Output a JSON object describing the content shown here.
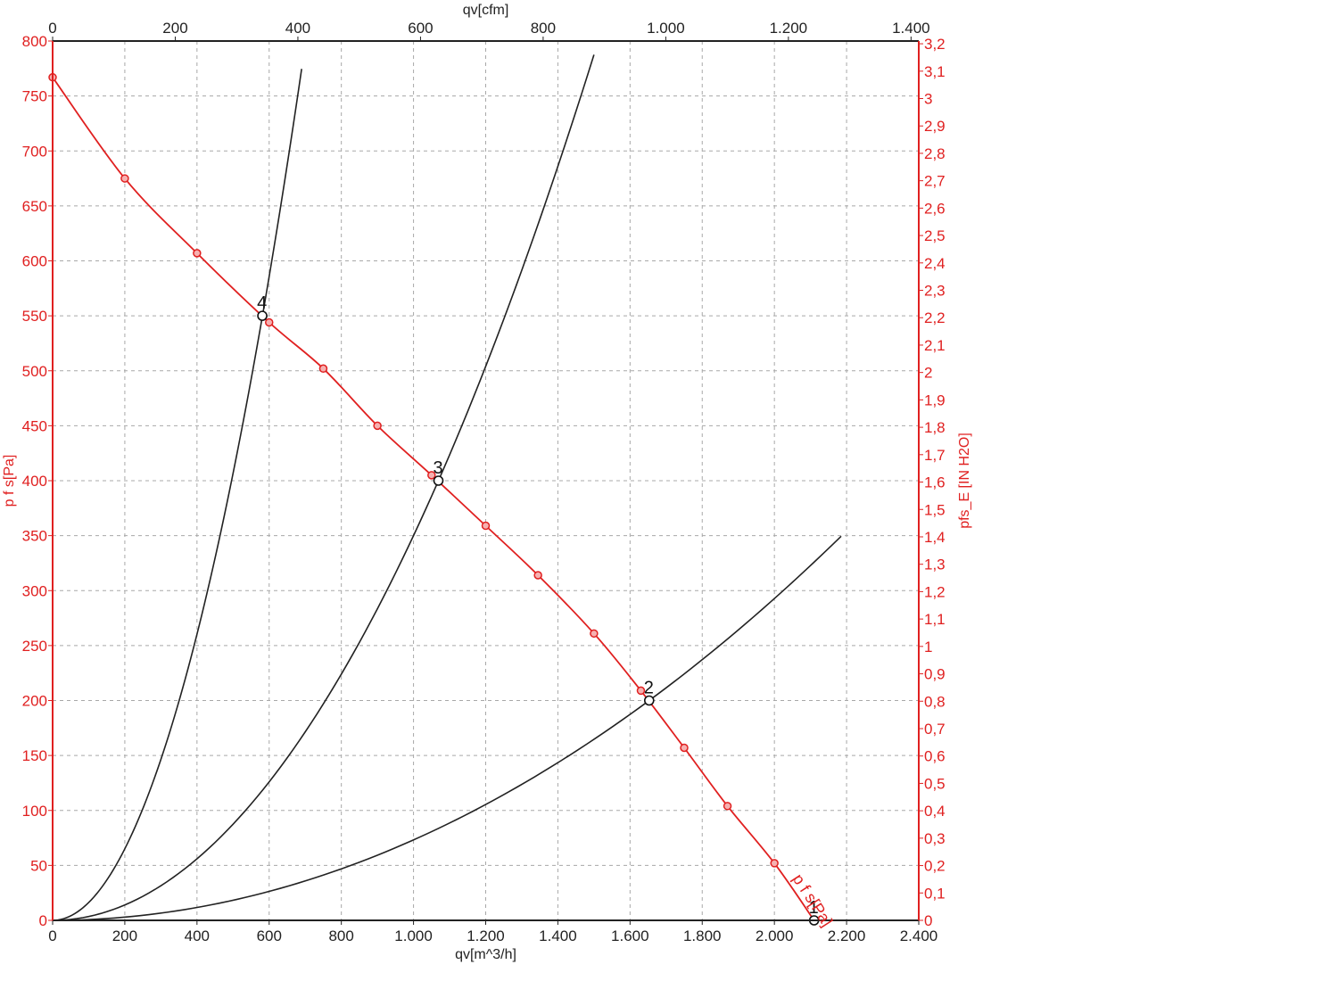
{
  "chart_data": {
    "type": "line",
    "title": "",
    "grid": true,
    "x_bottom": {
      "label": "qv[m^3/h]",
      "range": [
        0,
        2400
      ],
      "ticks": [
        0,
        200,
        400,
        600,
        800,
        1000,
        1200,
        1400,
        1600,
        1800,
        2000,
        2200,
        2400
      ],
      "tick_labels": [
        "0",
        "200",
        "400",
        "600",
        "800",
        "1.000",
        "1.200",
        "1.400",
        "1.600",
        "1.800",
        "2.000",
        "2.200",
        "2.400"
      ]
    },
    "x_top": {
      "label": "qv[cfm]",
      "range": [
        0,
        1412.6
      ],
      "ticks": [
        0,
        200,
        400,
        600,
        800,
        1000,
        1200,
        1400
      ],
      "tick_labels": [
        "0",
        "200",
        "400",
        "600",
        "800",
        "1.000",
        "1.200",
        "1.400"
      ]
    },
    "y_left": {
      "label": "p f s[Pa]",
      "range": [
        0,
        800
      ],
      "ticks": [
        0,
        50,
        100,
        150,
        200,
        250,
        300,
        350,
        400,
        450,
        500,
        550,
        600,
        650,
        700,
        750,
        800
      ],
      "tick_labels": [
        "0",
        "50",
        "100",
        "150",
        "200",
        "250",
        "300",
        "350",
        "400",
        "450",
        "500",
        "550",
        "600",
        "650",
        "700",
        "750",
        "800"
      ]
    },
    "y_right": {
      "label": "pfs_E [IN H2O]",
      "range": [
        0,
        3.21
      ],
      "ticks": [
        0,
        0.1,
        0.2,
        0.3,
        0.4,
        0.5,
        0.6,
        0.7,
        0.8,
        0.9,
        1,
        1.1,
        1.2,
        1.3,
        1.4,
        1.5,
        1.6,
        1.7,
        1.8,
        1.9,
        2,
        2.1,
        2.2,
        2.3,
        2.4,
        2.5,
        2.6,
        2.7,
        2.8,
        2.9,
        3,
        3.1,
        3.2
      ],
      "tick_labels": [
        "0",
        "0,1",
        "0,2",
        "0,3",
        "0,4",
        "0,5",
        "0,6",
        "0,7",
        "0,8",
        "0,9",
        "1",
        "1,1",
        "1,2",
        "1,3",
        "1,4",
        "1,5",
        "1,6",
        "1,7",
        "1,8",
        "1,9",
        "2",
        "2,1",
        "2,2",
        "2,3",
        "2,4",
        "2,5",
        "2,6",
        "2,7",
        "2,8",
        "2,9",
        "3",
        "3,1",
        "3,2"
      ]
    },
    "fan_curve": {
      "name": "p f s[Pa]",
      "color": "#e02020",
      "x": [
        0,
        200,
        400,
        600,
        750,
        900,
        1050,
        1200,
        1345,
        1500,
        1630,
        1750,
        1870,
        2000,
        2110
      ],
      "y": [
        767,
        675,
        607,
        544,
        502,
        450,
        405,
        359,
        314,
        261,
        209,
        157,
        104,
        52,
        0
      ],
      "markers_x": [
        0,
        200,
        400,
        600,
        750,
        900,
        1050,
        1200,
        1345,
        1500,
        1630,
        1750,
        1870,
        2000
      ],
      "markers_y": [
        767,
        675,
        607,
        544,
        502,
        450,
        405,
        359,
        314,
        261,
        209,
        157,
        104,
        52
      ]
    },
    "system_curves": [
      {
        "color": "#222222",
        "k": 0.001627,
        "x_max": 690
      },
      {
        "color": "#222222",
        "k": 0.00035,
        "x_max": 1500
      },
      {
        "color": "#222222",
        "k": 7.32e-05,
        "x_max": 2185
      }
    ],
    "operating_points": [
      {
        "label": "1",
        "x": 2110,
        "y": 0
      },
      {
        "label": "2",
        "x": 1653,
        "y": 200
      },
      {
        "label": "3",
        "x": 1069,
        "y": 400
      },
      {
        "label": "4",
        "x": 581,
        "y": 550
      }
    ]
  }
}
